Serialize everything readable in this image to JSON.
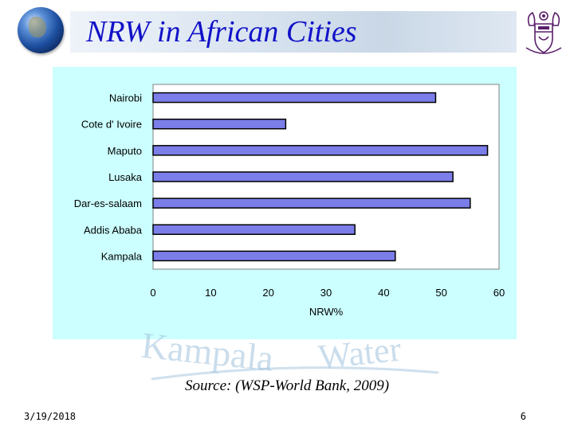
{
  "slide": {
    "title": "NRW in African Cities",
    "source": "Source: (WSP-World Bank,  2009)",
    "date": "3/19/2018",
    "page_number": "6",
    "watermark": "Kampala Water",
    "accent_color": "#1212c8",
    "chart_background": "#ccffff"
  },
  "icons": {
    "logo_left": "globe-icon",
    "logo_right": "university-crest-icon"
  },
  "chart_data": {
    "type": "bar",
    "orientation": "horizontal",
    "categories": [
      "Nairobi",
      "Cote d' Ivoire",
      "Maputo",
      "Lusaka",
      "Dar-es-salaam",
      "Addis Ababa",
      "Kampala"
    ],
    "values": [
      49,
      23,
      58,
      52,
      55,
      35,
      42
    ],
    "xlabel": "NRW%",
    "xlim": [
      0,
      60
    ],
    "xticks": [
      0,
      10,
      20,
      30,
      40,
      50,
      60
    ],
    "grid": false,
    "legend": "none",
    "bar_color": "#7b7ee8"
  }
}
